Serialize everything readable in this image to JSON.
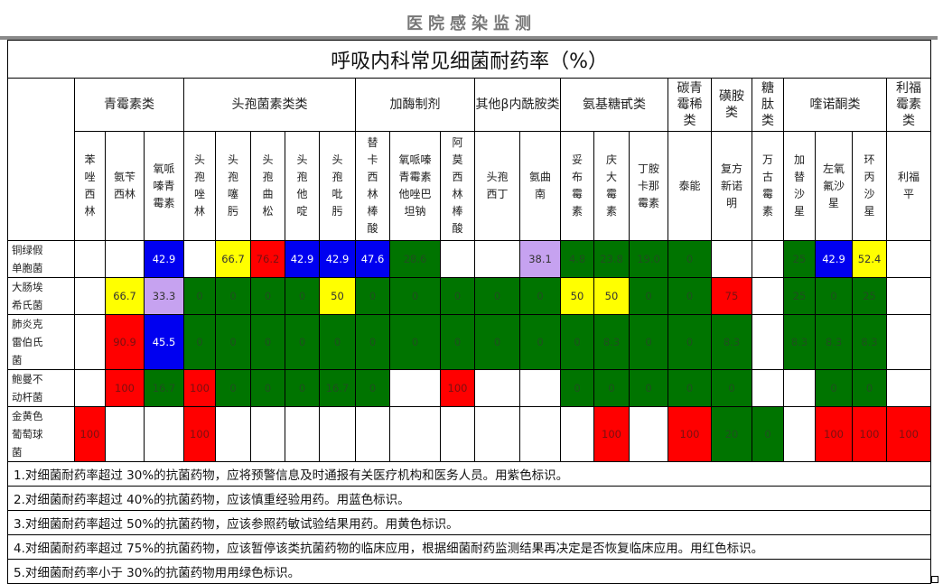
{
  "header": {
    "title": "医院感染监测"
  },
  "table": {
    "title": "呼吸内科常见细菌耐药率（%）",
    "groups": [
      {
        "label": "青霉素类",
        "span": 3
      },
      {
        "label": "头孢菌素类类",
        "span": 5
      },
      {
        "label": "加酶制剂",
        "span": 3
      },
      {
        "label": "其他β内酰胺类",
        "span": 2
      },
      {
        "label": "氨基糖甙类",
        "span": 3
      },
      {
        "label": "碳青霉稀类",
        "span": 1
      },
      {
        "label": "磺胺类",
        "span": 1
      },
      {
        "label": "糖肽类",
        "span": 1
      },
      {
        "label": "喹诺酮类",
        "span": 3
      },
      {
        "label": "利福霉素类",
        "span": 1
      }
    ],
    "drugs": [
      "苯唑西林",
      "氨苄西林",
      "氧哌嗪青霉素",
      "头孢唑林",
      "头孢噻肟",
      "头孢曲松",
      "头孢他啶",
      "头孢吡肟",
      "替卡西林棒酸",
      "氧哌嗪青霉素他唑巴坦钠",
      "阿莫西林棒酸",
      "头孢西丁",
      "氨曲南",
      "妥布霉素",
      "庆大霉素",
      "丁胺卡那霉素",
      "泰能",
      "复方新诺明",
      "万古霉素",
      "加替沙星",
      "左氧氟沙星",
      "环丙沙星",
      "利福平"
    ],
    "colors": {
      "blue": "#0000f0",
      "red": "#ff0000",
      "green": "#007400",
      "yellow": "#ffff00",
      "purple": "#c6a2f0"
    },
    "rows": [
      {
        "organism": "铜绿假单胞菌",
        "values": [
          "",
          "",
          "42.9",
          "",
          "66.7",
          "76.2",
          "42.9",
          "42.9",
          "47.6",
          "28.6",
          "",
          "",
          "38.1",
          "4.8",
          "23.8",
          "19.0",
          "0",
          "",
          "",
          "25",
          "42.9",
          "52.4",
          ""
        ],
        "colors": [
          "",
          "",
          "blue",
          "",
          "yellow",
          "red",
          "blue",
          "blue",
          "blue",
          "green",
          "",
          "",
          "purple",
          "green",
          "green",
          "green",
          "green",
          "",
          "",
          "green",
          "blue",
          "yellow",
          ""
        ]
      },
      {
        "organism": "大肠埃希氏菌",
        "values": [
          "",
          "66.7",
          "33.3",
          "0",
          "0",
          "0",
          "0",
          "50",
          "0",
          "0",
          "0",
          "0",
          "0",
          "50",
          "50",
          "0",
          "0",
          "75",
          "",
          "25",
          "0",
          "25",
          ""
        ],
        "colors": [
          "",
          "yellow",
          "purple",
          "green",
          "green",
          "green",
          "green",
          "yellow",
          "green",
          "green",
          "green",
          "green",
          "green",
          "yellow",
          "yellow",
          "green",
          "green",
          "red",
          "",
          "green",
          "green",
          "green",
          ""
        ]
      },
      {
        "organism": "肺炎克雷伯氏菌",
        "values": [
          "",
          "90.9",
          "45.5",
          "0",
          "0",
          "0",
          "0",
          "0",
          "0",
          "0",
          "0",
          "0",
          "0",
          "0",
          "8.3",
          "0",
          "0",
          "8.3",
          "",
          "8.3",
          "8.3",
          "8.3",
          ""
        ],
        "colors": [
          "",
          "red",
          "blue",
          "green",
          "green",
          "green",
          "green",
          "green",
          "green",
          "green",
          "green",
          "green",
          "green",
          "green",
          "green",
          "green",
          "green",
          "green",
          "",
          "green",
          "green",
          "green",
          ""
        ]
      },
      {
        "organism": "鲍曼不动杆菌",
        "values": [
          "",
          "100",
          "16.7",
          "100",
          "0",
          "0",
          "0",
          "16.7",
          "0",
          "",
          "100",
          "",
          "",
          "0",
          "0",
          "0",
          "0",
          "0",
          "",
          "",
          "0",
          "0",
          ""
        ],
        "colors": [
          "",
          "red",
          "green",
          "red",
          "green",
          "green",
          "green",
          "green",
          "green",
          "",
          "red",
          "",
          "",
          "green",
          "green",
          "green",
          "green",
          "green",
          "",
          "",
          "green",
          "green",
          ""
        ]
      },
      {
        "organism": "金黄色葡萄球菌",
        "values": [
          "100",
          "",
          "",
          "100",
          "",
          "",
          "",
          "",
          "",
          "",
          "",
          "",
          "",
          "",
          "100",
          "",
          "100",
          "20",
          "0",
          "",
          "100",
          "100",
          "100"
        ],
        "colors": [
          "red",
          "",
          "",
          "red",
          "",
          "",
          "",
          "",
          "",
          "",
          "",
          "",
          "",
          "",
          "red",
          "",
          "red",
          "green",
          "green",
          "",
          "red",
          "red",
          "red"
        ]
      }
    ],
    "notes": [
      "1.对细菌耐药率超过 30%的抗菌药物，应将预警信息及时通报有关医疗机构和医务人员。用紫色标识。",
      "2.对细菌耐药率超过 40%的抗菌药物，应该慎重经验用药。用蓝色标识。",
      "3.对细菌耐药率超过 50%的抗菌药物，应该参照药敏试验结果用药。用黄色标识。",
      "4.对细菌耐药率超过 75%的抗菌药物，应该暂停该类抗菌药物的临床应用，根据细菌耐药监测结果再决定是否恢复临床应用。用红色标识。",
      "5.对细菌耐药率小于 30%的抗菌药物用用绿色标识。"
    ]
  }
}
